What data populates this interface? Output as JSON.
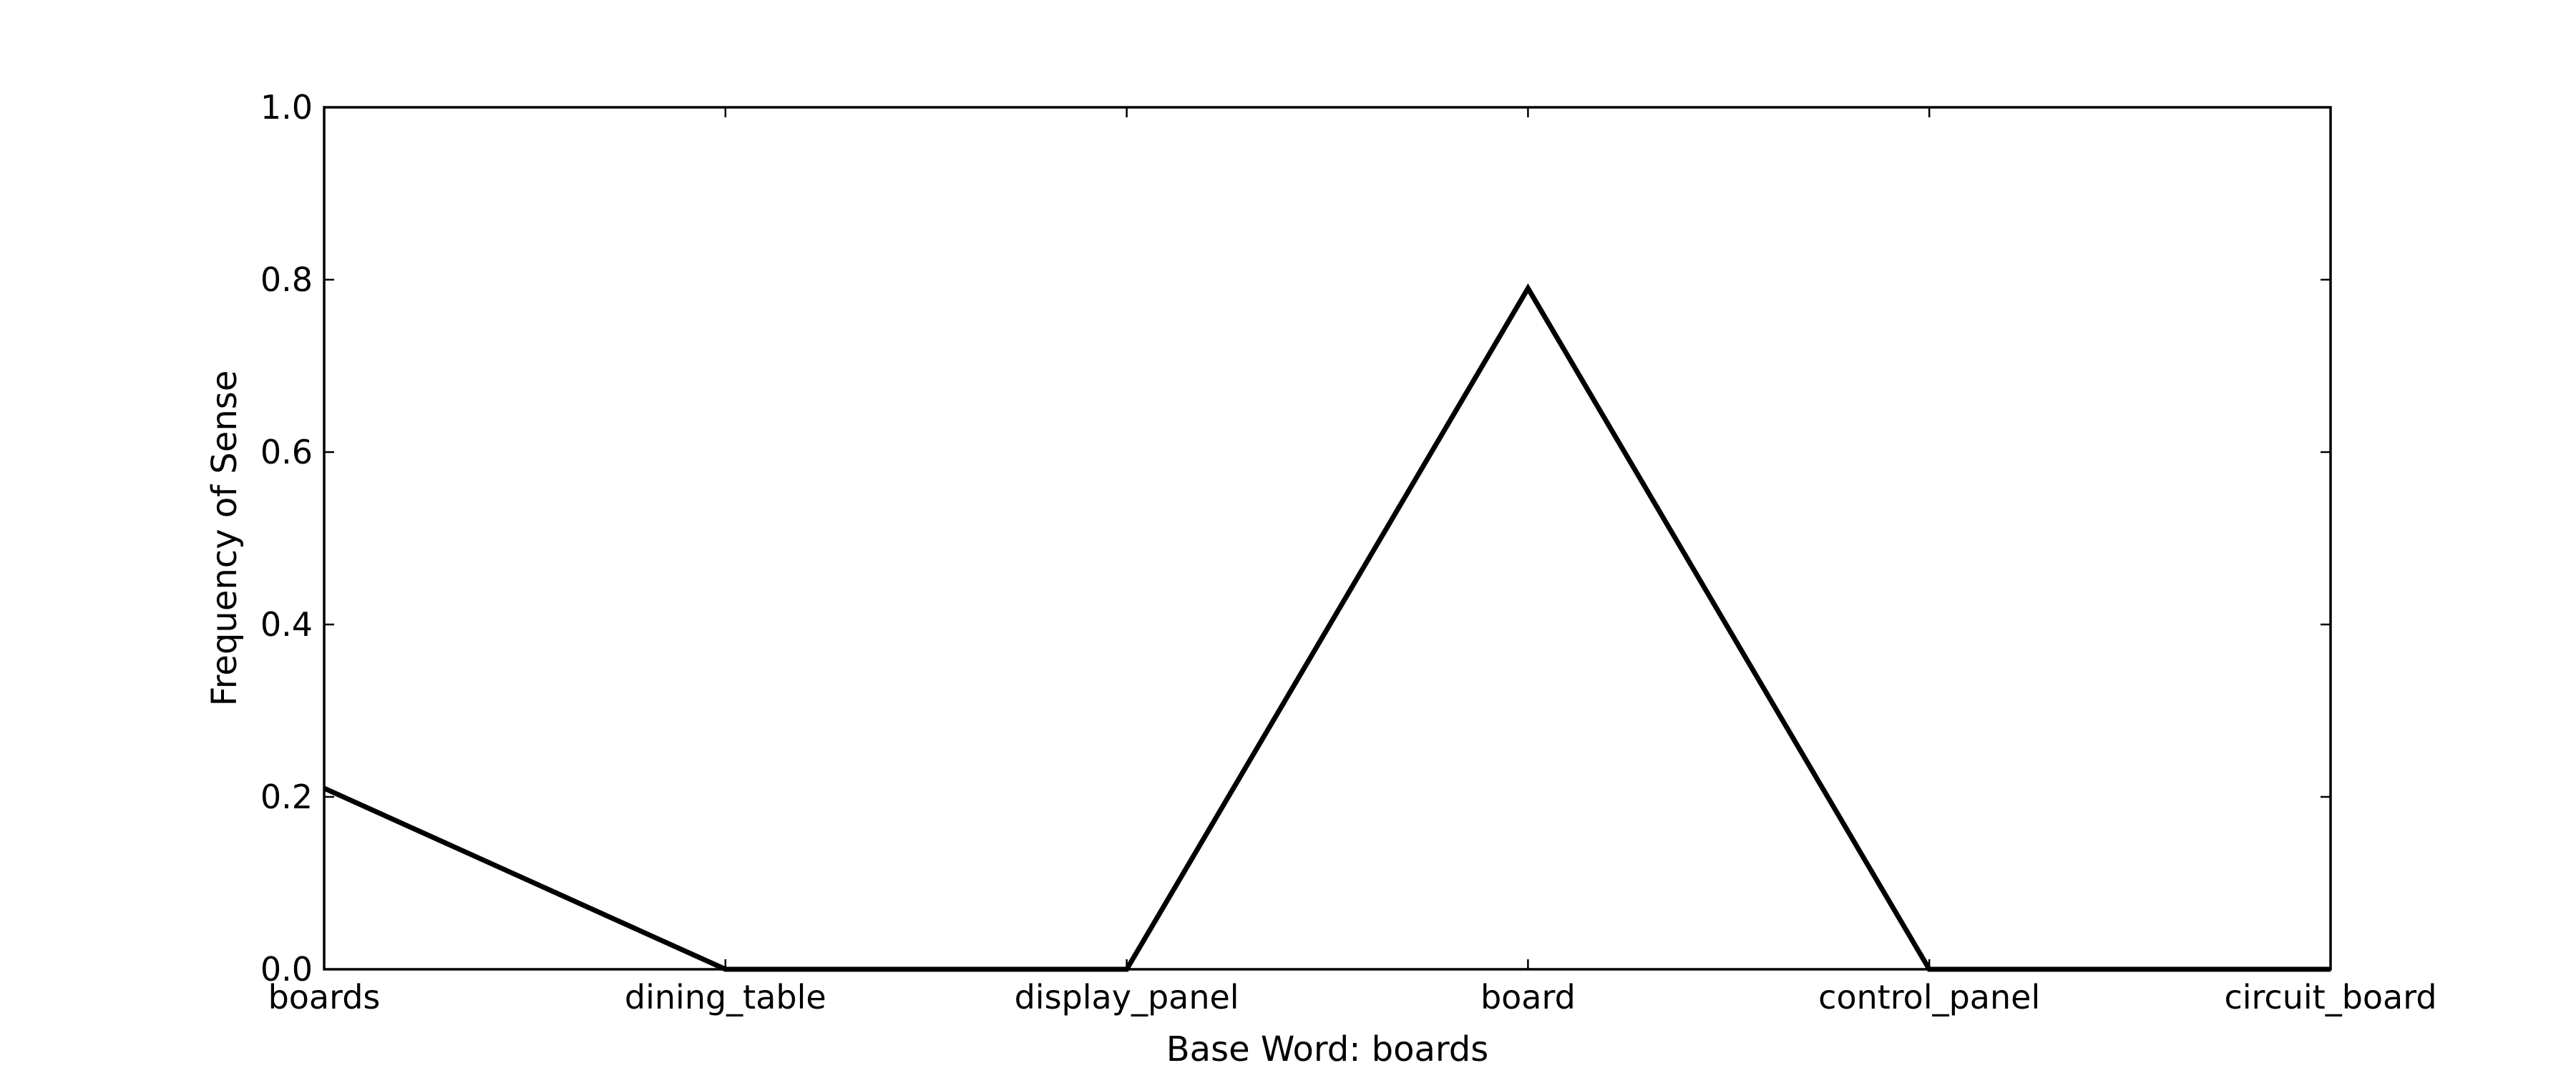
{
  "chart_data": {
    "type": "line",
    "title": "",
    "xlabel": "Base Word: boards",
    "ylabel": "Frequency of Sense",
    "categories": [
      "boards",
      "dining_table",
      "display_panel",
      "board",
      "control_panel",
      "circuit_board"
    ],
    "series": [
      {
        "values": [
          0.21,
          0.0,
          0.0,
          0.79,
          0.0,
          0.0
        ],
        "color": "#000000"
      }
    ],
    "ylim": [
      0.0,
      1.0
    ],
    "yticks": [
      0.0,
      0.2,
      0.4,
      0.6,
      0.8,
      1.0
    ],
    "ytick_labels": [
      "0.0",
      "0.2",
      "0.4",
      "0.6",
      "0.8",
      "1.0"
    ],
    "grid": false,
    "legend": "none"
  }
}
